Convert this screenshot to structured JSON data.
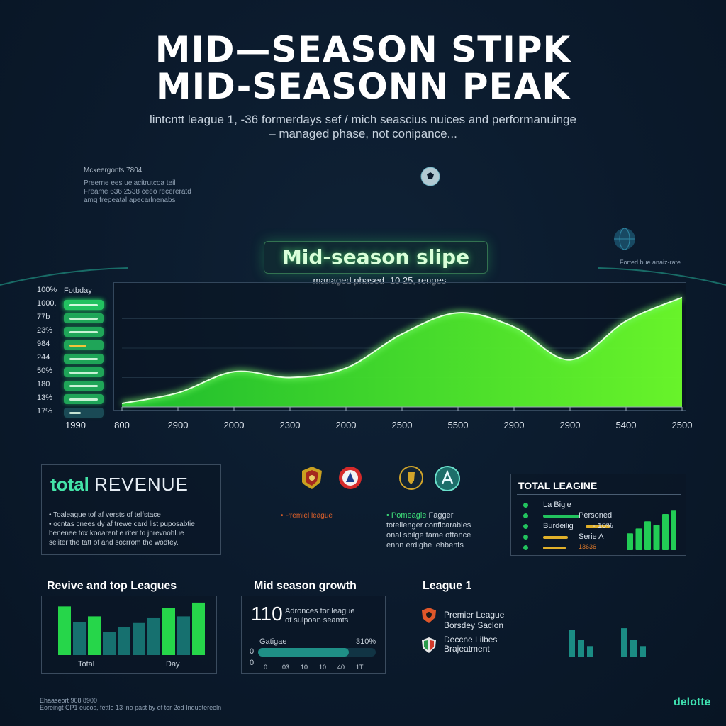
{
  "header": {
    "title_line1": "MID—SEASON STIPK",
    "title_line2": "MID-SEASONN PEAK",
    "subtitle_line1": "lintcntt league 1, -36 formerdays sef / mich seascius nuices and performanuinge",
    "subtitle_line2": "– managed phase, not conipance..."
  },
  "notes": {
    "left_title": "Mckeergonts 7804",
    "left_line1": "Preerne ees uelacitrutcoa teil",
    "left_line2": "Freame 636 2538 ceeo recereratd",
    "left_line3": "amq frepeatal apecarlnenabs",
    "right_note": "Forted bue anaiz-rate"
  },
  "chart_data": {
    "type": "area",
    "title": "Mid-season slipe",
    "subtitle": "– managed phased -10 25, renges",
    "x": [
      "800",
      "2900",
      "2000",
      "2300",
      "2000",
      "2500",
      "5500",
      "2900",
      "2900",
      "5400",
      "2500"
    ],
    "series": [
      {
        "values": [
          3,
          12,
          30,
          25,
          33,
          62,
          80,
          68,
          40,
          73,
          93
        ]
      }
    ],
    "ylim": [
      0,
      100
    ],
    "grid": true,
    "color": "#39ff3a",
    "left_axis_title": "Fotbday",
    "left_tick_labels": [
      "100%",
      "1000.",
      "77b",
      "23%",
      "984",
      "244",
      "50%",
      "180",
      "13%",
      "17%"
    ],
    "left_pill_values": [
      100,
      100,
      100,
      100,
      60,
      100,
      100,
      100,
      100,
      40
    ],
    "extra_x_label": "1990"
  },
  "revenue_panel": {
    "title_bold": "total",
    "title_rest": "REVENUE",
    "line1": "• Toaleague tof af versts of telfstace",
    "line2": "• ocntas cnees dy af trewe card list puposabtie",
    "line3": "  benenee tox kooarent e riter to jnrevnohlue",
    "line4": "  seliter the tatt of and socrrom the wodtey."
  },
  "badges": {
    "left_caption": "• Premiel league",
    "right_caption_bold": "• Pomeagle",
    "right_caption_rest": "Fagger",
    "right_line2": "totellenger conficarables",
    "right_line3": "onal sbilge tame oftance",
    "right_line4": "ennn erdighe lehbents"
  },
  "total_league": {
    "title": "TOTAL LEAGINE",
    "rows": [
      {
        "label": "La Bigie",
        "value": ""
      },
      {
        "label": "",
        "value": "Personed"
      },
      {
        "label": "Burdeilig",
        "value": "- 10%"
      },
      {
        "label": "",
        "value": "Serie A"
      },
      {
        "label": "",
        "value": "13636"
      }
    ],
    "bar_values": [
      35,
      45,
      60,
      52,
      75,
      82
    ],
    "row_bar_values": [
      0,
      0.8,
      0.55,
      0.55,
      0.5
    ]
  },
  "revive": {
    "title": "Revive and top Leagues",
    "xlabel_left": "Total",
    "xlabel_right": "Day",
    "bar_values": [
      88,
      60,
      70,
      42,
      50,
      58,
      68,
      85,
      70,
      95
    ]
  },
  "mid_growth": {
    "title": "Mid season growth",
    "big_number": "110",
    "desc_line1": "Adronces for league",
    "desc_line2": "of sulpoan seamts",
    "bar_label": "Gatigae",
    "bar_value_text": "310%",
    "bar_fraction": 0.77,
    "zero_a": "0",
    "zero_b": "0",
    "ticks": [
      "0",
      "03",
      "10",
      "10",
      "40",
      "1T"
    ]
  },
  "league1": {
    "title": "League 1",
    "item1_line1": "Premier League",
    "item1_line2": "Borsdey Saclon",
    "item2_line1": "Deccne Lilbes",
    "item2_line2": "Brajeatment",
    "mini_bars_a": [
      0.9,
      0.55,
      0.35
    ],
    "mini_bars_b": [
      0.95,
      0.55,
      0.35
    ]
  },
  "footer": {
    "line1": "Ehaaseort 908 8900",
    "line2": "Eoreingt CP1 eucos, fettle 13 ino past by of tor 2ed Induotereeln",
    "brand": "delotte"
  },
  "colors": {
    "background": "#0b1a2c",
    "accent_green": "#39ff3a",
    "teal": "#1a7c78",
    "gold": "#e0b02a"
  }
}
